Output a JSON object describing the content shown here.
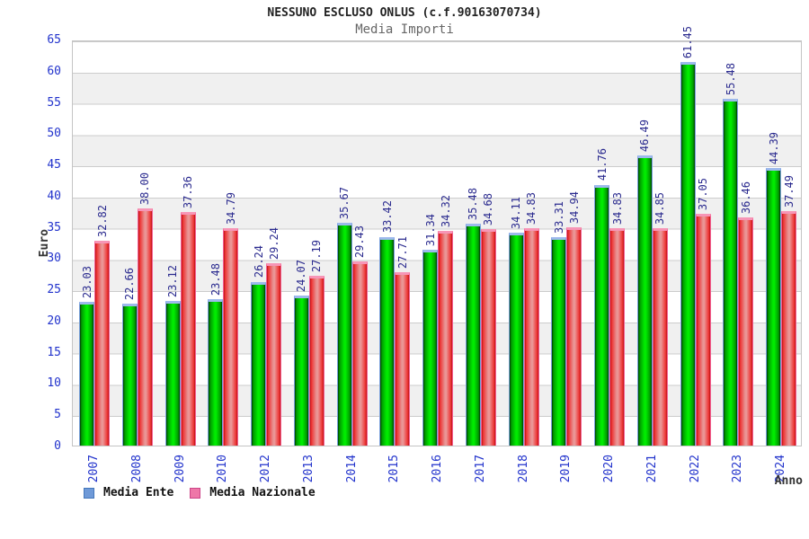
{
  "header": {
    "title": "NESSUNO ESCLUSO ONLUS (c.f.90163070734)",
    "subtitle": "Media Importi"
  },
  "axes": {
    "y_label": "Euro",
    "x_label": "Anno",
    "y_ticks": [
      0,
      5,
      10,
      15,
      20,
      25,
      30,
      35,
      40,
      45,
      50,
      55,
      60,
      65
    ]
  },
  "legend": {
    "items": [
      {
        "label": "Media Ente",
        "swatch_color": "#6f9ad8"
      },
      {
        "label": "Media Nazionale",
        "swatch_color": "#ee77a8"
      }
    ]
  },
  "colors": {
    "bar_ente_fill": "#00cc00",
    "bar_nazionale_fill": "#e06060",
    "tick_label": "#2233cc",
    "value_label": "#2b2b8f",
    "band_gray": "#f0f0f0"
  },
  "chart_data": {
    "type": "bar",
    "title": "Media Importi",
    "xlabel": "Anno",
    "ylabel": "Euro",
    "ylim": [
      0,
      65
    ],
    "ytick_step": 5,
    "grid": true,
    "legend_position": "bottom-left",
    "categories": [
      "2007",
      "2008",
      "2009",
      "2010",
      "2012",
      "2013",
      "2014",
      "2015",
      "2016",
      "2017",
      "2018",
      "2019",
      "2020",
      "2021",
      "2022",
      "2023",
      "2024"
    ],
    "series": [
      {
        "name": "Media Ente",
        "values": [
          23.03,
          22.66,
          23.12,
          23.48,
          26.24,
          24.07,
          35.67,
          33.42,
          31.34,
          35.48,
          34.11,
          33.31,
          41.76,
          46.49,
          61.45,
          55.48,
          44.39
        ]
      },
      {
        "name": "Media Nazionale",
        "values": [
          32.82,
          38.0,
          37.36,
          34.79,
          29.24,
          27.19,
          29.43,
          27.71,
          34.32,
          34.68,
          34.83,
          34.94,
          34.83,
          34.85,
          37.05,
          36.46,
          37.49
        ]
      }
    ]
  }
}
